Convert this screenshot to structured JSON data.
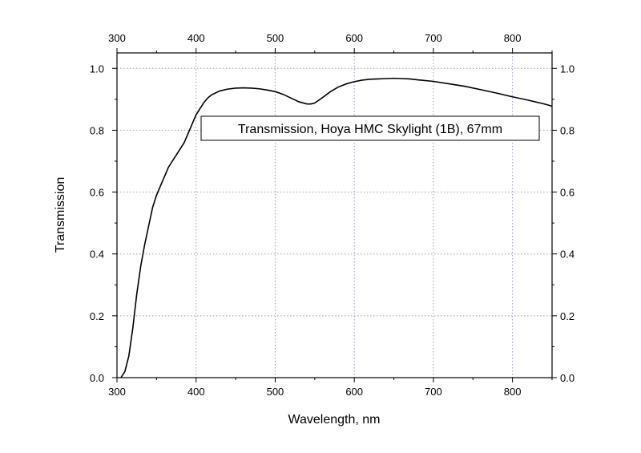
{
  "chart_data": {
    "type": "line",
    "title": "",
    "xlabel": "Wavelength, nm",
    "ylabel": "Transmission",
    "xlim": [
      300,
      850
    ],
    "ylim": [
      0,
      1.05
    ],
    "x_ticks": [
      300,
      400,
      500,
      600,
      700,
      800
    ],
    "y_ticks": [
      0.0,
      0.2,
      0.4,
      0.6,
      0.8,
      1.0
    ],
    "x_tick_labels": [
      "300",
      "400",
      "500",
      "600",
      "700",
      "800"
    ],
    "y_tick_labels": [
      "0.0",
      "0.2",
      "0.4",
      "0.6",
      "0.8",
      "1.0"
    ],
    "top_axis_mirrored": true,
    "right_axis_mirrored": true,
    "grid": true,
    "grid_style": "dotted",
    "grid_color": "#9a9ad8",
    "line_color": "#000000",
    "annotation": "Transmission, Hoya HMC Skylight (1B), 67mm",
    "series": [
      {
        "x": [
          305,
          310,
          315,
          320,
          325,
          330,
          335,
          340,
          345,
          350,
          355,
          360,
          365,
          370,
          375,
          380,
          385,
          390,
          395,
          400,
          405,
          410,
          415,
          420,
          430,
          440,
          450,
          460,
          470,
          480,
          490,
          500,
          510,
          520,
          530,
          540,
          545,
          550,
          560,
          570,
          580,
          590,
          600,
          610,
          620,
          630,
          640,
          650,
          660,
          670,
          680,
          700,
          720,
          740,
          760,
          780,
          800,
          820,
          840,
          850
        ],
        "y": [
          0.0,
          0.02,
          0.07,
          0.16,
          0.27,
          0.36,
          0.43,
          0.49,
          0.55,
          0.59,
          0.62,
          0.65,
          0.68,
          0.7,
          0.72,
          0.74,
          0.76,
          0.79,
          0.82,
          0.85,
          0.87,
          0.89,
          0.905,
          0.915,
          0.927,
          0.933,
          0.936,
          0.937,
          0.936,
          0.934,
          0.93,
          0.925,
          0.916,
          0.904,
          0.892,
          0.885,
          0.885,
          0.888,
          0.906,
          0.925,
          0.94,
          0.95,
          0.957,
          0.962,
          0.965,
          0.966,
          0.967,
          0.968,
          0.967,
          0.966,
          0.963,
          0.958,
          0.95,
          0.942,
          0.931,
          0.92,
          0.908,
          0.897,
          0.885,
          0.878
        ]
      }
    ]
  }
}
